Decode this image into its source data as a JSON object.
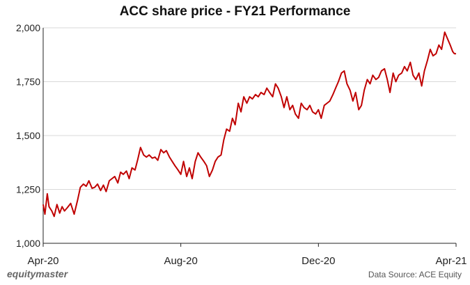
{
  "chart_data": {
    "type": "line",
    "title": "ACC share price - FY21 Performance",
    "xlabel": "",
    "ylabel": "",
    "ylim": [
      1000,
      2000
    ],
    "yticks": [
      1000,
      1250,
      1500,
      1750,
      2000
    ],
    "ytick_labels": [
      "1,000",
      "1,250",
      "1,500",
      "1,750",
      "2,000"
    ],
    "xticks": [
      {
        "label": "Apr-20",
        "x": 0
      },
      {
        "label": "Aug-20",
        "x": 4
      },
      {
        "label": "Dec-20",
        "x": 8
      },
      {
        "label": "Apr-21",
        "x": 12
      }
    ],
    "xlim": [
      0,
      12
    ],
    "grid": true,
    "line_color": "#c00000",
    "series": [
      {
        "x": [
          0.0,
          0.05,
          0.12,
          0.17,
          0.25,
          0.32,
          0.4,
          0.48,
          0.55,
          0.62,
          0.7,
          0.8,
          0.9,
          1.0,
          1.08,
          1.17,
          1.25,
          1.33,
          1.42,
          1.5,
          1.58,
          1.67,
          1.75,
          1.83,
          1.92,
          2.0,
          2.08,
          2.17,
          2.25,
          2.33,
          2.42,
          2.5,
          2.58,
          2.67,
          2.75,
          2.83,
          2.92,
          3.0,
          3.08,
          3.17,
          3.25,
          3.33,
          3.42,
          3.5,
          3.58,
          3.67,
          3.75,
          3.83,
          3.92,
          4.0,
          4.08,
          4.17,
          4.25,
          4.33,
          4.42,
          4.5,
          4.58,
          4.67,
          4.75,
          4.83,
          4.92,
          5.0,
          5.08,
          5.17,
          5.25,
          5.33,
          5.42,
          5.5,
          5.58,
          5.67,
          5.75,
          5.83,
          5.92,
          6.0,
          6.08,
          6.17,
          6.25,
          6.33,
          6.42,
          6.5,
          6.58,
          6.67,
          6.75,
          6.83,
          6.92,
          7.0,
          7.08,
          7.17,
          7.25,
          7.33,
          7.42,
          7.5,
          7.58,
          7.67,
          7.75,
          7.83,
          7.92,
          8.0,
          8.08,
          8.17,
          8.25,
          8.33,
          8.42,
          8.5,
          8.58,
          8.67,
          8.75,
          8.83,
          8.92,
          9.0,
          9.08,
          9.17,
          9.25,
          9.33,
          9.42,
          9.5,
          9.58,
          9.67,
          9.75,
          9.83,
          9.92,
          10.0,
          10.08,
          10.17,
          10.25,
          10.33,
          10.42,
          10.5,
          10.58,
          10.67,
          10.75,
          10.83,
          10.92,
          11.0,
          11.08,
          11.17,
          11.25,
          11.33,
          11.42,
          11.5,
          11.58,
          11.67,
          11.75,
          11.83,
          11.9,
          11.95,
          12.0
        ],
        "values": [
          1180,
          1135,
          1230,
          1170,
          1150,
          1125,
          1180,
          1140,
          1170,
          1150,
          1165,
          1185,
          1135,
          1200,
          1260,
          1275,
          1265,
          1290,
          1255,
          1260,
          1275,
          1245,
          1270,
          1240,
          1290,
          1300,
          1310,
          1280,
          1330,
          1320,
          1335,
          1300,
          1350,
          1340,
          1390,
          1445,
          1410,
          1400,
          1410,
          1395,
          1400,
          1385,
          1435,
          1420,
          1430,
          1400,
          1380,
          1360,
          1340,
          1320,
          1380,
          1310,
          1350,
          1300,
          1380,
          1420,
          1400,
          1380,
          1360,
          1310,
          1340,
          1380,
          1400,
          1410,
          1480,
          1530,
          1520,
          1580,
          1550,
          1650,
          1610,
          1680,
          1650,
          1680,
          1670,
          1690,
          1680,
          1700,
          1690,
          1720,
          1700,
          1680,
          1740,
          1720,
          1680,
          1630,
          1680,
          1620,
          1640,
          1600,
          1580,
          1650,
          1630,
          1620,
          1640,
          1610,
          1600,
          1620,
          1580,
          1640,
          1650,
          1660,
          1690,
          1720,
          1750,
          1790,
          1800,
          1740,
          1710,
          1660,
          1700,
          1620,
          1640,
          1710,
          1760,
          1740,
          1780,
          1760,
          1770,
          1800,
          1810,
          1760,
          1700,
          1790,
          1750,
          1780,
          1790,
          1820,
          1800,
          1840,
          1780,
          1760,
          1790,
          1730,
          1800,
          1850,
          1900,
          1870,
          1880,
          1920,
          1900,
          1980,
          1950,
          1920,
          1890,
          1880,
          1880
        ]
      }
    ]
  },
  "footer": {
    "brand": "equitymaster",
    "source": "Data Source: ACE Equity"
  }
}
